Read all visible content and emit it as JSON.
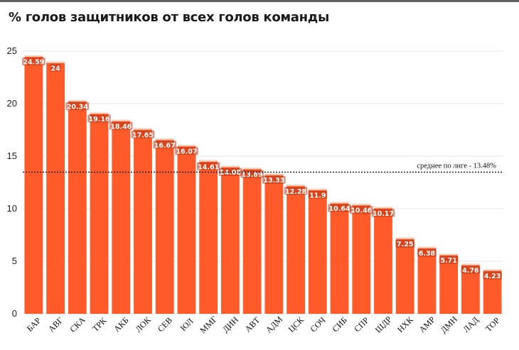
{
  "title": "% голов защитников от всех голов команды",
  "chart_data": {
    "type": "bar",
    "title": "% голов защитников от всех голов команды",
    "categories": [
      "БАР",
      "АВГ",
      "СКА",
      "ТРК",
      "АКБ",
      "ЛОК",
      "СЕВ",
      "ЮЛ",
      "ММГ",
      "ДИН",
      "АВТ",
      "АДМ",
      "ЦСК",
      "СОЧ",
      "СИБ",
      "СПР",
      "ШДР",
      "НХК",
      "АМР",
      "ДМН",
      "ЛАД",
      "ТОР"
    ],
    "values": [
      24.59,
      24,
      20.34,
      19.16,
      18.46,
      17.65,
      16.67,
      16.07,
      14.61,
      14.08,
      13.89,
      13.33,
      12.28,
      11.9,
      10.64,
      10.46,
      10.17,
      7.25,
      6.38,
      5.71,
      4.76,
      4.23
    ],
    "value_labels": [
      "24.59",
      "24",
      "20.34",
      "19.16",
      "18.46",
      "17.65",
      "16.67",
      "16.07",
      "14.61",
      "14.08",
      "13.89",
      "13.33",
      "12.28",
      "11.9",
      "10.64",
      "10.46",
      "10.17",
      "7.25",
      "6.38",
      "5.71",
      "4.76",
      "4.23"
    ],
    "yticks": [
      "0",
      "5",
      "10",
      "15",
      "20",
      "25"
    ],
    "ylim": [
      0,
      25
    ],
    "grid": true,
    "reference_line": {
      "value": 13.48,
      "label": "среднее по лиге - 13.48%"
    },
    "colors": {
      "bar": "#ff5a2a",
      "bar_top": "#ffd4c2",
      "grid": "#e6e6e6",
      "reference_line": "#222222",
      "value_label_bg": "#b8320f"
    }
  }
}
